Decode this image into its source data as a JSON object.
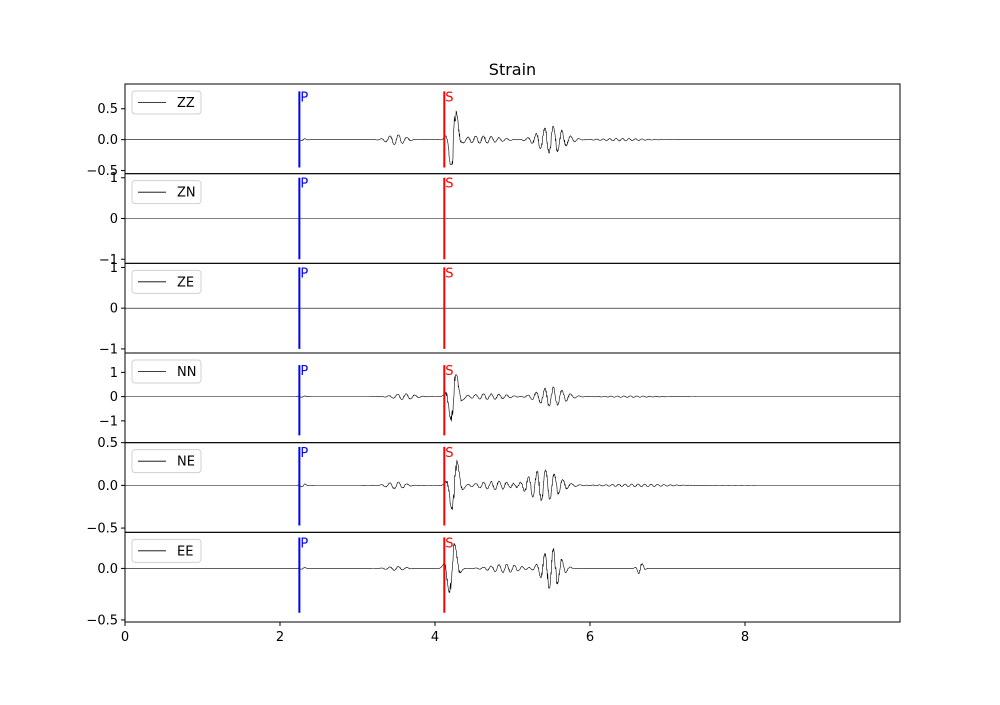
{
  "chart_data": {
    "type": "line",
    "title": "Strain",
    "xlim": [
      0,
      10
    ],
    "xticks": [
      0,
      2,
      4,
      6,
      8
    ],
    "xtick_labels": [
      "0",
      "2",
      "4",
      "6",
      "8"
    ],
    "picks": [
      {
        "label": "P",
        "time": 2.25,
        "color": "#0000ff"
      },
      {
        "label": "S",
        "time": 4.12,
        "color": "#ff0000"
      }
    ],
    "trace_color": "#000000",
    "panels": [
      {
        "component": "ZZ",
        "ylim": [
          -0.55,
          0.9
        ],
        "yticks": [
          -0.5,
          0.0,
          0.5
        ],
        "ytick_labels": [
          "−0.5",
          "0.0",
          "0.5"
        ],
        "amplitude_range": [
          -0.4,
          0.65
        ],
        "pick_line_range": [
          -0.45,
          0.78
        ],
        "wave_packets": [
          {
            "center": 2.3,
            "width": 0.05,
            "amp": 0.02,
            "freq": 10
          },
          {
            "center": 3.5,
            "width": 0.15,
            "amp": 0.08,
            "freq": 9
          },
          {
            "center": 4.24,
            "width": 0.07,
            "amp": 0.62,
            "freq": 6
          },
          {
            "center": 4.6,
            "width": 0.3,
            "amp": 0.06,
            "freq": 10
          },
          {
            "center": 5.5,
            "width": 0.22,
            "amp": 0.22,
            "freq": 9
          },
          {
            "center": 6.4,
            "width": 0.35,
            "amp": 0.02,
            "freq": 12
          }
        ]
      },
      {
        "component": "ZN",
        "ylim": [
          -1.1,
          1.1
        ],
        "yticks": [
          -1,
          0,
          1
        ],
        "ytick_labels": [
          "−1",
          "0",
          "1"
        ],
        "amplitude_range": [
          0,
          0
        ],
        "pick_line_range": [
          -1.0,
          1.0
        ],
        "wave_packets": []
      },
      {
        "component": "ZE",
        "ylim": [
          -1.1,
          1.1
        ],
        "yticks": [
          -1,
          0,
          1
        ],
        "ytick_labels": [
          "−1",
          "0",
          "1"
        ],
        "amplitude_range": [
          0,
          0
        ],
        "pick_line_range": [
          -1.0,
          1.0
        ],
        "wave_packets": []
      },
      {
        "component": "NN",
        "ylim": [
          -1.9,
          1.8
        ],
        "yticks": [
          -1,
          0,
          1
        ],
        "ytick_labels": [
          "−1",
          "0",
          "1"
        ],
        "amplitude_range": [
          -1.5,
          0.9
        ],
        "pick_line_range": [
          -1.6,
          1.3
        ],
        "wave_packets": [
          {
            "center": 2.3,
            "width": 0.05,
            "amp": 0.03,
            "freq": 10
          },
          {
            "center": 3.6,
            "width": 0.18,
            "amp": 0.12,
            "freq": 9
          },
          {
            "center": 4.24,
            "width": 0.08,
            "amp": 1.2,
            "freq": 6
          },
          {
            "center": 4.7,
            "width": 0.3,
            "amp": 0.12,
            "freq": 10
          },
          {
            "center": 5.5,
            "width": 0.22,
            "amp": 0.4,
            "freq": 9
          },
          {
            "center": 6.5,
            "width": 0.4,
            "amp": 0.03,
            "freq": 12
          }
        ]
      },
      {
        "component": "NE",
        "ylim": [
          -0.55,
          0.5
        ],
        "yticks": [
          -0.5,
          0.0,
          0.5
        ],
        "ytick_labels": [
          "−0.5",
          "0.0",
          "0.5"
        ],
        "amplitude_range": [
          -0.43,
          0.35
        ],
        "pick_line_range": [
          -0.47,
          0.45
        ],
        "wave_packets": [
          {
            "center": 2.3,
            "width": 0.05,
            "amp": 0.02,
            "freq": 10
          },
          {
            "center": 3.5,
            "width": 0.15,
            "amp": 0.04,
            "freq": 9
          },
          {
            "center": 4.25,
            "width": 0.08,
            "amp": 0.35,
            "freq": 6
          },
          {
            "center": 4.8,
            "width": 0.3,
            "amp": 0.05,
            "freq": 10
          },
          {
            "center": 5.4,
            "width": 0.25,
            "amp": 0.18,
            "freq": 9
          },
          {
            "center": 6.6,
            "width": 0.5,
            "amp": 0.015,
            "freq": 12
          }
        ]
      },
      {
        "component": "EE",
        "ylim": [
          -0.52,
          0.35
        ],
        "yticks": [
          -0.5,
          0.0
        ],
        "ytick_labels": [
          "−0.5",
          "0.0"
        ],
        "amplitude_range": [
          -0.4,
          0.28
        ],
        "pick_line_range": [
          -0.43,
          0.3
        ],
        "wave_packets": [
          {
            "center": 2.3,
            "width": 0.05,
            "amp": 0.01,
            "freq": 10
          },
          {
            "center": 3.5,
            "width": 0.15,
            "amp": 0.02,
            "freq": 9
          },
          {
            "center": 4.22,
            "width": 0.08,
            "amp": 0.3,
            "freq": 6
          },
          {
            "center": 4.9,
            "width": 0.25,
            "amp": 0.04,
            "freq": 10
          },
          {
            "center": 5.5,
            "width": 0.15,
            "amp": 0.2,
            "freq": 9
          },
          {
            "center": 6.65,
            "width": 0.05,
            "amp": 0.06,
            "freq": 10
          }
        ]
      }
    ]
  }
}
